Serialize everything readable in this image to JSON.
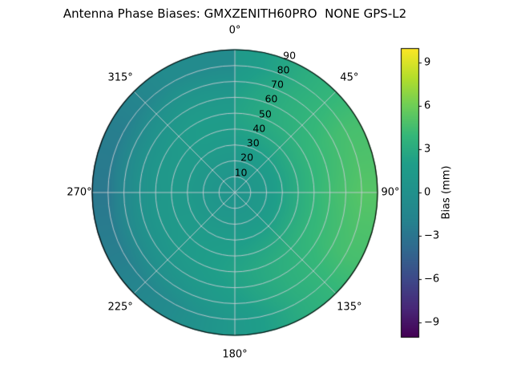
{
  "title": "Antenna Phase Biases: GMXZENITH60PRO  NONE GPS-L2",
  "chart_data": {
    "type": "heatmap",
    "projection": "polar",
    "title": "Antenna Phase Biases: GMXZENITH60PRO  NONE GPS-L2",
    "grid": "on",
    "theta_zero": "top",
    "theta_direction": "clockwise",
    "angular_ticks": [
      {
        "deg": 0,
        "label": "0°"
      },
      {
        "deg": 45,
        "label": "45°"
      },
      {
        "deg": 90,
        "label": "90°"
      },
      {
        "deg": 135,
        "label": "135°"
      },
      {
        "deg": 180,
        "label": "180°"
      },
      {
        "deg": 225,
        "label": "225°"
      },
      {
        "deg": 270,
        "label": "270°"
      },
      {
        "deg": 315,
        "label": "315°"
      }
    ],
    "radial_ticks": [
      {
        "r": 10,
        "label": "10"
      },
      {
        "r": 20,
        "label": "20"
      },
      {
        "r": 30,
        "label": "30"
      },
      {
        "r": 40,
        "label": "40"
      },
      {
        "r": 50,
        "label": "50"
      },
      {
        "r": 60,
        "label": "60"
      },
      {
        "r": 70,
        "label": "70"
      },
      {
        "r": 80,
        "label": "80"
      },
      {
        "r": 90,
        "label": "90"
      }
    ],
    "radial_max": 90,
    "azimuth_deg": [
      0,
      30,
      60,
      90,
      120,
      150,
      180,
      210,
      240,
      270,
      300,
      330,
      360
    ],
    "zenith_deg": [
      0,
      10,
      20,
      30,
      40,
      50,
      60,
      70,
      80,
      90
    ],
    "bias_mm": [
      [
        0.5,
        0.5,
        0.5,
        0.5,
        0.5,
        0.5,
        0.5,
        0.5,
        0.5,
        0.5,
        0.5,
        0.5,
        0.5
      ],
      [
        0.8,
        0.83,
        0.85,
        0.86,
        0.85,
        0.83,
        0.8,
        0.77,
        0.75,
        0.74,
        0.75,
        0.77,
        0.8
      ],
      [
        1.2,
        1.32,
        1.41,
        1.45,
        1.41,
        1.32,
        1.2,
        1.08,
        0.99,
        0.95,
        0.99,
        1.08,
        1.2
      ],
      [
        1.8,
        2.08,
        2.28,
        2.36,
        2.28,
        2.08,
        1.8,
        1.52,
        1.32,
        1.24,
        1.32,
        1.52,
        1.8
      ],
      [
        2.2,
        2.69,
        3.06,
        3.19,
        3.06,
        2.69,
        2.2,
        1.71,
        1.34,
        1.21,
        1.34,
        1.71,
        2.2
      ],
      [
        2.4,
        3.17,
        3.74,
        3.94,
        3.74,
        3.17,
        2.4,
        1.63,
        1.06,
        0.86,
        1.06,
        1.63,
        2.4
      ],
      [
        2.2,
        3.31,
        4.12,
        4.42,
        4.12,
        3.31,
        2.2,
        1.09,
        0.28,
        -0.02,
        0.28,
        1.09,
        2.2
      ],
      [
        1.8,
        3.31,
        4.42,
        4.83,
        4.42,
        3.31,
        1.8,
        0.29,
        -0.82,
        -1.23,
        -0.82,
        0.29,
        1.8
      ],
      [
        1.2,
        3.18,
        4.62,
        5.15,
        4.62,
        3.18,
        1.2,
        -0.78,
        -2.22,
        -2.75,
        -2.22,
        -0.78,
        1.2
      ],
      [
        0.5,
        3.0,
        4.83,
        5.5,
        4.83,
        3.0,
        0.5,
        -2.0,
        -3.83,
        -4.5,
        -3.83,
        -2.0,
        0.5
      ]
    ],
    "colorbar": {
      "label": "Bias (mm)",
      "colormap": "viridis",
      "vmin": -10,
      "vmax": 10,
      "ticks": [
        {
          "v": 9,
          "label": "9"
        },
        {
          "v": 6,
          "label": "6"
        },
        {
          "v": 3,
          "label": "3"
        },
        {
          "v": 0,
          "label": "0"
        },
        {
          "v": -3,
          "label": "−3"
        },
        {
          "v": -6,
          "label": "−6"
        },
        {
          "v": -9,
          "label": "−9"
        }
      ]
    },
    "colors": {
      "grid_line": "#c6cbd2",
      "outline": "#000000",
      "background": "#ffffff"
    }
  }
}
